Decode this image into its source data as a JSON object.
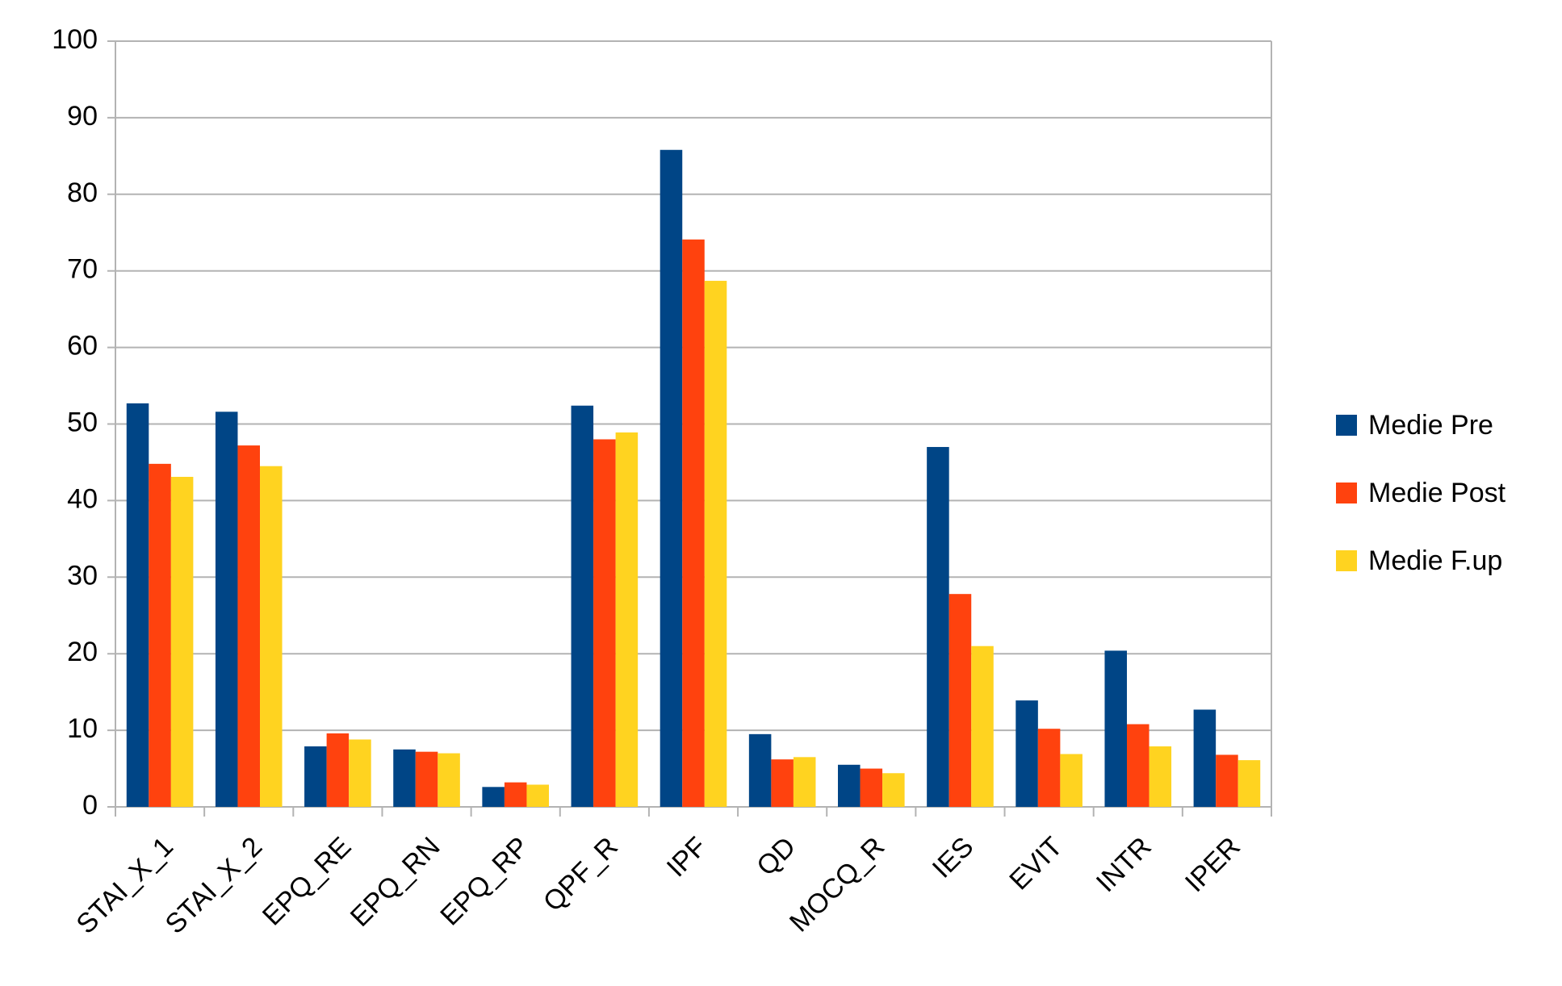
{
  "chart_data": {
    "type": "bar",
    "categories": [
      "STAI_X_1",
      "STAI_X_2",
      "EPQ_RE",
      "EPQ_RN",
      "EPQ_RP",
      "QPF_R",
      "IPF",
      "QD",
      "MOCQ_R",
      "IES",
      "EVIT",
      "INTR",
      "IPER"
    ],
    "series": [
      {
        "name": "Medie Pre",
        "color": "#004586",
        "values": [
          52.7,
          51.6,
          7.9,
          7.5,
          2.6,
          52.4,
          85.8,
          9.5,
          5.5,
          47.0,
          13.9,
          20.4,
          12.7
        ]
      },
      {
        "name": "Medie Post",
        "color": "#ff420e",
        "values": [
          44.8,
          47.2,
          9.6,
          7.2,
          3.2,
          48.0,
          74.1,
          6.2,
          5.0,
          27.8,
          10.2,
          10.8,
          6.8
        ]
      },
      {
        "name": "Medie F.up",
        "color": "#ffd320",
        "values": [
          43.1,
          44.5,
          8.8,
          7.0,
          2.9,
          48.9,
          68.7,
          6.5,
          4.4,
          21.0,
          6.9,
          7.9,
          6.1
        ]
      }
    ],
    "ylim": [
      0,
      100
    ],
    "yticks": [
      0,
      10,
      20,
      30,
      40,
      50,
      60,
      70,
      80,
      90,
      100
    ],
    "grid": true,
    "legend": "right"
  }
}
